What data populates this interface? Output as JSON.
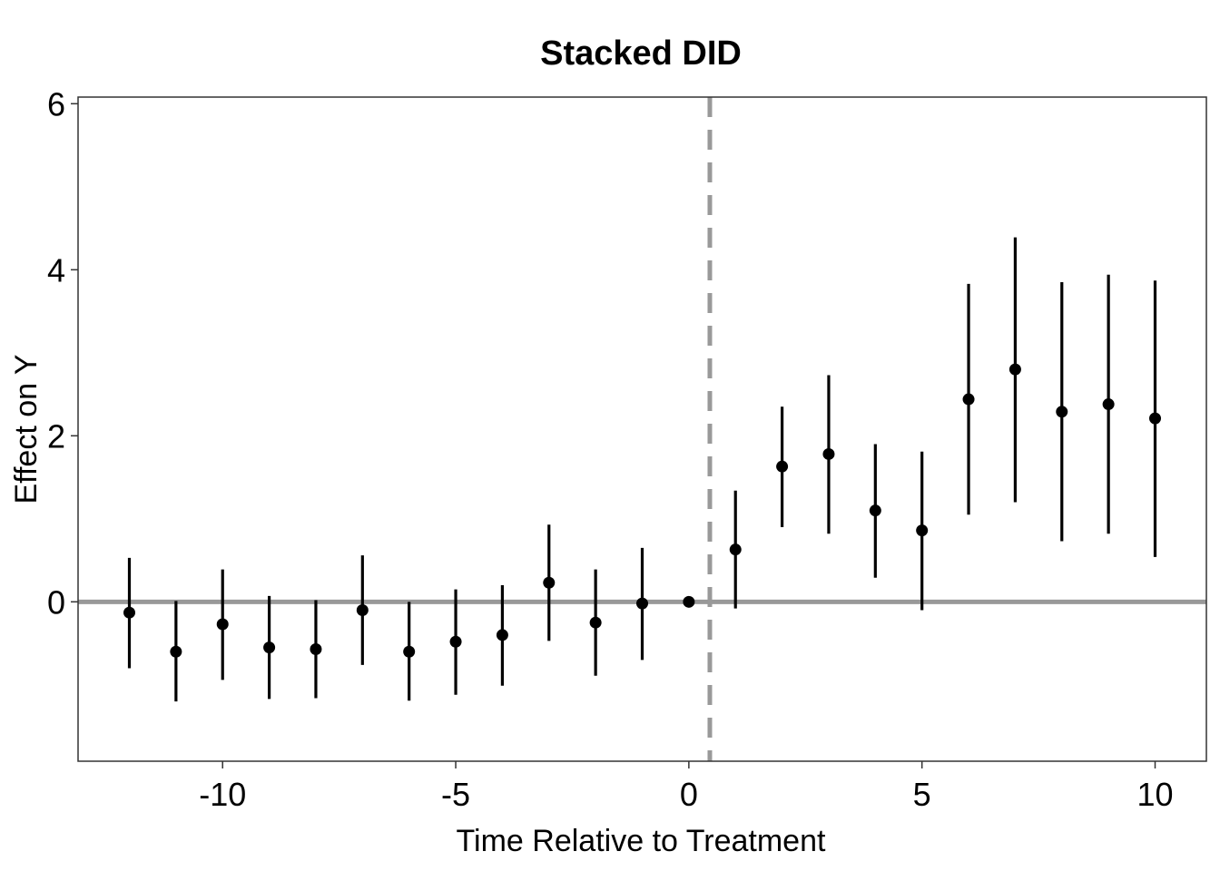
{
  "chart_data": {
    "type": "scatter",
    "title": "Stacked DID",
    "xlabel": "Time Relative to Treatment",
    "ylabel": "Effect on Y",
    "xlim": [
      -13.1,
      11.1
    ],
    "ylim": [
      -1.92,
      6.08
    ],
    "xticks": [
      -10,
      -5,
      0,
      5,
      10
    ],
    "yticks": [
      0,
      2,
      4,
      6
    ],
    "grid": false,
    "legend": "none",
    "reference_lines": {
      "horizontal_y": 0,
      "vertical_x": 0.45,
      "color": "#999999"
    },
    "point_color": "#000000",
    "points": [
      {
        "x": -12,
        "y": -0.13,
        "lo": -0.8,
        "hi": 0.53
      },
      {
        "x": -11,
        "y": -0.6,
        "lo": -1.2,
        "hi": 0.01
      },
      {
        "x": -10,
        "y": -0.27,
        "lo": -0.94,
        "hi": 0.39
      },
      {
        "x": -9,
        "y": -0.55,
        "lo": -1.17,
        "hi": 0.07
      },
      {
        "x": -8,
        "y": -0.57,
        "lo": -1.16,
        "hi": 0.02
      },
      {
        "x": -7,
        "y": -0.1,
        "lo": -0.76,
        "hi": 0.56
      },
      {
        "x": -6,
        "y": -0.6,
        "lo": -1.19,
        "hi": 0.0
      },
      {
        "x": -5,
        "y": -0.48,
        "lo": -1.12,
        "hi": 0.15
      },
      {
        "x": -4,
        "y": -0.4,
        "lo": -1.01,
        "hi": 0.2
      },
      {
        "x": -3,
        "y": 0.23,
        "lo": -0.47,
        "hi": 0.93
      },
      {
        "x": -2,
        "y": -0.25,
        "lo": -0.89,
        "hi": 0.39
      },
      {
        "x": -1,
        "y": -0.02,
        "lo": -0.7,
        "hi": 0.65
      },
      {
        "x": 0,
        "y": 0.0,
        "lo": 0.0,
        "hi": 0.0
      },
      {
        "x": 1,
        "y": 0.63,
        "lo": -0.08,
        "hi": 1.34
      },
      {
        "x": 2,
        "y": 1.63,
        "lo": 0.9,
        "hi": 2.35
      },
      {
        "x": 3,
        "y": 1.78,
        "lo": 0.82,
        "hi": 2.73
      },
      {
        "x": 4,
        "y": 1.1,
        "lo": 0.29,
        "hi": 1.9
      },
      {
        "x": 5,
        "y": 0.86,
        "lo": -0.1,
        "hi": 1.81
      },
      {
        "x": 6,
        "y": 2.44,
        "lo": 1.05,
        "hi": 3.83
      },
      {
        "x": 7,
        "y": 2.8,
        "lo": 1.2,
        "hi": 4.39
      },
      {
        "x": 8,
        "y": 2.29,
        "lo": 0.73,
        "hi": 3.85
      },
      {
        "x": 9,
        "y": 2.38,
        "lo": 0.82,
        "hi": 3.94
      },
      {
        "x": 10,
        "y": 2.21,
        "lo": 0.54,
        "hi": 3.87
      }
    ]
  }
}
